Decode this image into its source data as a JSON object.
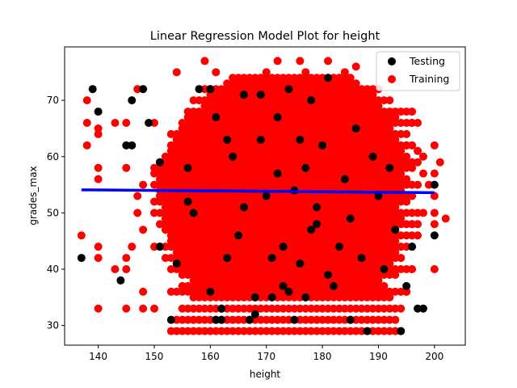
{
  "chart_data": {
    "type": "scatter",
    "title": "Linear Regression Model Plot for height",
    "xlabel": "height",
    "ylabel": "grades_max",
    "xlim": [
      134,
      205.5
    ],
    "ylim": [
      26.5,
      79.5
    ],
    "xticks": [
      140,
      150,
      160,
      170,
      180,
      190,
      200
    ],
    "yticks": [
      30,
      40,
      50,
      60,
      70
    ],
    "grid": false,
    "legend_position": "top-right",
    "colors": {
      "testing": "#000000",
      "training": "#ff0000",
      "regression": "#0000ff"
    },
    "series": [
      {
        "name": "Testing",
        "color": "#000000",
        "points": [
          [
            137,
            42
          ],
          [
            139,
            72
          ],
          [
            140,
            68
          ],
          [
            144,
            38
          ],
          [
            145,
            62
          ],
          [
            146,
            62
          ],
          [
            146,
            70
          ],
          [
            148,
            72
          ],
          [
            149,
            66
          ],
          [
            151,
            44
          ],
          [
            151,
            59
          ],
          [
            153,
            31
          ],
          [
            154,
            41
          ],
          [
            156,
            52
          ],
          [
            156,
            58
          ],
          [
            157,
            50
          ],
          [
            158,
            72
          ],
          [
            160,
            72
          ],
          [
            160,
            36
          ],
          [
            161,
            67
          ],
          [
            161,
            31
          ],
          [
            162,
            31
          ],
          [
            162,
            33
          ],
          [
            163,
            63
          ],
          [
            163,
            42
          ],
          [
            164,
            60
          ],
          [
            165,
            46
          ],
          [
            166,
            71
          ],
          [
            166,
            51
          ],
          [
            167,
            31
          ],
          [
            168,
            32
          ],
          [
            168,
            35
          ],
          [
            169,
            63
          ],
          [
            169,
            71
          ],
          [
            170,
            53
          ],
          [
            171,
            35
          ],
          [
            171,
            42
          ],
          [
            172,
            57
          ],
          [
            172,
            67
          ],
          [
            173,
            44
          ],
          [
            173,
            37
          ],
          [
            174,
            72
          ],
          [
            174,
            36
          ],
          [
            175,
            31
          ],
          [
            175,
            54
          ],
          [
            176,
            41
          ],
          [
            176,
            63
          ],
          [
            177,
            58
          ],
          [
            177,
            35
          ],
          [
            178,
            47
          ],
          [
            178,
            70
          ],
          [
            179,
            51
          ],
          [
            179,
            48
          ],
          [
            180,
            62
          ],
          [
            181,
            74
          ],
          [
            181,
            39
          ],
          [
            182,
            37
          ],
          [
            183,
            44
          ],
          [
            184,
            56
          ],
          [
            185,
            31
          ],
          [
            185,
            49
          ],
          [
            186,
            65
          ],
          [
            187,
            42
          ],
          [
            188,
            29
          ],
          [
            189,
            60
          ],
          [
            190,
            53
          ],
          [
            191,
            40
          ],
          [
            192,
            58
          ],
          [
            193,
            47
          ],
          [
            194,
            29
          ],
          [
            195,
            37
          ],
          [
            196,
            44
          ],
          [
            197,
            33
          ],
          [
            198,
            33
          ],
          [
            200,
            55
          ],
          [
            200,
            46
          ]
        ]
      },
      {
        "name": "Training",
        "color": "#ff0000",
        "points": [
          [
            137,
            46
          ],
          [
            138,
            70
          ],
          [
            138,
            66
          ],
          [
            138,
            62
          ],
          [
            140,
            33
          ],
          [
            140,
            42
          ],
          [
            140,
            44
          ],
          [
            140,
            58
          ],
          [
            140,
            56
          ],
          [
            140,
            64
          ],
          [
            140,
            65
          ],
          [
            143,
            40
          ],
          [
            143,
            66
          ],
          [
            145,
            33
          ],
          [
            145,
            40
          ],
          [
            145,
            42
          ],
          [
            145,
            58
          ],
          [
            145,
            66
          ],
          [
            146,
            44
          ],
          [
            147,
            50
          ],
          [
            147,
            53
          ],
          [
            147,
            72
          ],
          [
            148,
            36
          ],
          [
            148,
            33
          ],
          [
            148,
            47
          ],
          [
            148,
            55
          ],
          [
            150,
            44
          ],
          [
            150,
            66
          ],
          [
            150,
            57
          ],
          [
            150,
            50
          ],
          [
            150,
            33
          ],
          [
            200,
            62
          ],
          [
            200,
            57
          ],
          [
            200,
            53
          ],
          [
            200,
            40
          ],
          [
            200,
            50
          ],
          [
            200,
            48
          ],
          [
            201,
            59
          ],
          [
            202,
            49
          ],
          [
            199,
            55
          ],
          [
            198,
            60
          ],
          [
            198,
            57
          ],
          [
            197,
            61
          ],
          [
            197,
            48
          ],
          [
            196,
            66
          ],
          [
            196,
            68
          ],
          [
            195,
            52
          ],
          [
            195,
            62
          ],
          [
            195,
            36
          ],
          [
            194,
            42
          ],
          [
            159,
            77
          ],
          [
            172,
            77
          ],
          [
            176,
            77
          ],
          [
            181,
            77
          ],
          [
            186,
            76
          ],
          [
            190,
            72
          ],
          [
            170,
            75
          ],
          [
            177,
            75
          ],
          [
            184,
            75
          ],
          [
            154,
            75
          ],
          [
            161,
            75
          ]
        ]
      }
    ],
    "training_bands": [
      {
        "y": 29,
        "x": [
          153,
          194
        ]
      },
      {
        "y": 31,
        "x": [
          154,
          193
        ]
      },
      {
        "y": 33,
        "x": [
          155,
          194
        ]
      },
      {
        "y": 35,
        "x": [
          157,
          192
        ]
      },
      {
        "y": 36,
        "x": [
          153,
          195
        ]
      },
      {
        "y": 37,
        "x": [
          155,
          191
        ]
      },
      {
        "y": 38,
        "x": [
          157,
          190
        ]
      },
      {
        "y": 39,
        "x": [
          155,
          193
        ]
      },
      {
        "y": 40,
        "x": [
          153,
          196
        ]
      },
      {
        "y": 41,
        "x": [
          154,
          192
        ]
      },
      {
        "y": 42,
        "x": [
          152,
          194
        ]
      },
      {
        "y": 43,
        "x": [
          154,
          193
        ]
      },
      {
        "y": 44,
        "x": [
          151,
          195
        ]
      },
      {
        "y": 45,
        "x": [
          153,
          193
        ]
      },
      {
        "y": 46,
        "x": [
          153,
          197
        ]
      },
      {
        "y": 47,
        "x": [
          152,
          192
        ]
      },
      {
        "y": 48,
        "x": [
          151,
          196
        ]
      },
      {
        "y": 49,
        "x": [
          152,
          194
        ]
      },
      {
        "y": 50,
        "x": [
          151,
          198
        ]
      },
      {
        "y": 51,
        "x": [
          152,
          193
        ]
      },
      {
        "y": 52,
        "x": [
          150,
          195
        ]
      },
      {
        "y": 53,
        "x": [
          151,
          196
        ]
      },
      {
        "y": 54,
        "x": [
          151,
          194
        ]
      },
      {
        "y": 55,
        "x": [
          150,
          197
        ]
      },
      {
        "y": 56,
        "x": [
          151,
          195
        ]
      },
      {
        "y": 57,
        "x": [
          151,
          194
        ]
      },
      {
        "y": 58,
        "x": [
          150,
          196
        ]
      },
      {
        "y": 59,
        "x": [
          151,
          197
        ]
      },
      {
        "y": 60,
        "x": [
          152,
          195
        ]
      },
      {
        "y": 61,
        "x": [
          153,
          194
        ]
      },
      {
        "y": 62,
        "x": [
          153,
          196
        ]
      },
      {
        "y": 63,
        "x": [
          154,
          193
        ]
      },
      {
        "y": 64,
        "x": [
          153,
          195
        ]
      },
      {
        "y": 65,
        "x": [
          155,
          192
        ]
      },
      {
        "y": 66,
        "x": [
          155,
          197
        ]
      },
      {
        "y": 67,
        "x": [
          156,
          193
        ]
      },
      {
        "y": 68,
        "x": [
          156,
          195
        ]
      },
      {
        "y": 69,
        "x": [
          159,
          190
        ]
      },
      {
        "y": 70,
        "x": [
          157,
          192
        ]
      },
      {
        "y": 71,
        "x": [
          160,
          189
        ]
      },
      {
        "y": 72,
        "x": [
          159,
          190
        ]
      },
      {
        "y": 73,
        "x": [
          163,
          186
        ]
      },
      {
        "y": 74,
        "x": [
          164,
          185
        ]
      }
    ],
    "regression_line": {
      "name": "regression",
      "color": "#0000ff",
      "x": [
        137,
        200
      ],
      "y": [
        54.1,
        53.6
      ]
    },
    "legend": [
      "Testing",
      "Training"
    ]
  }
}
